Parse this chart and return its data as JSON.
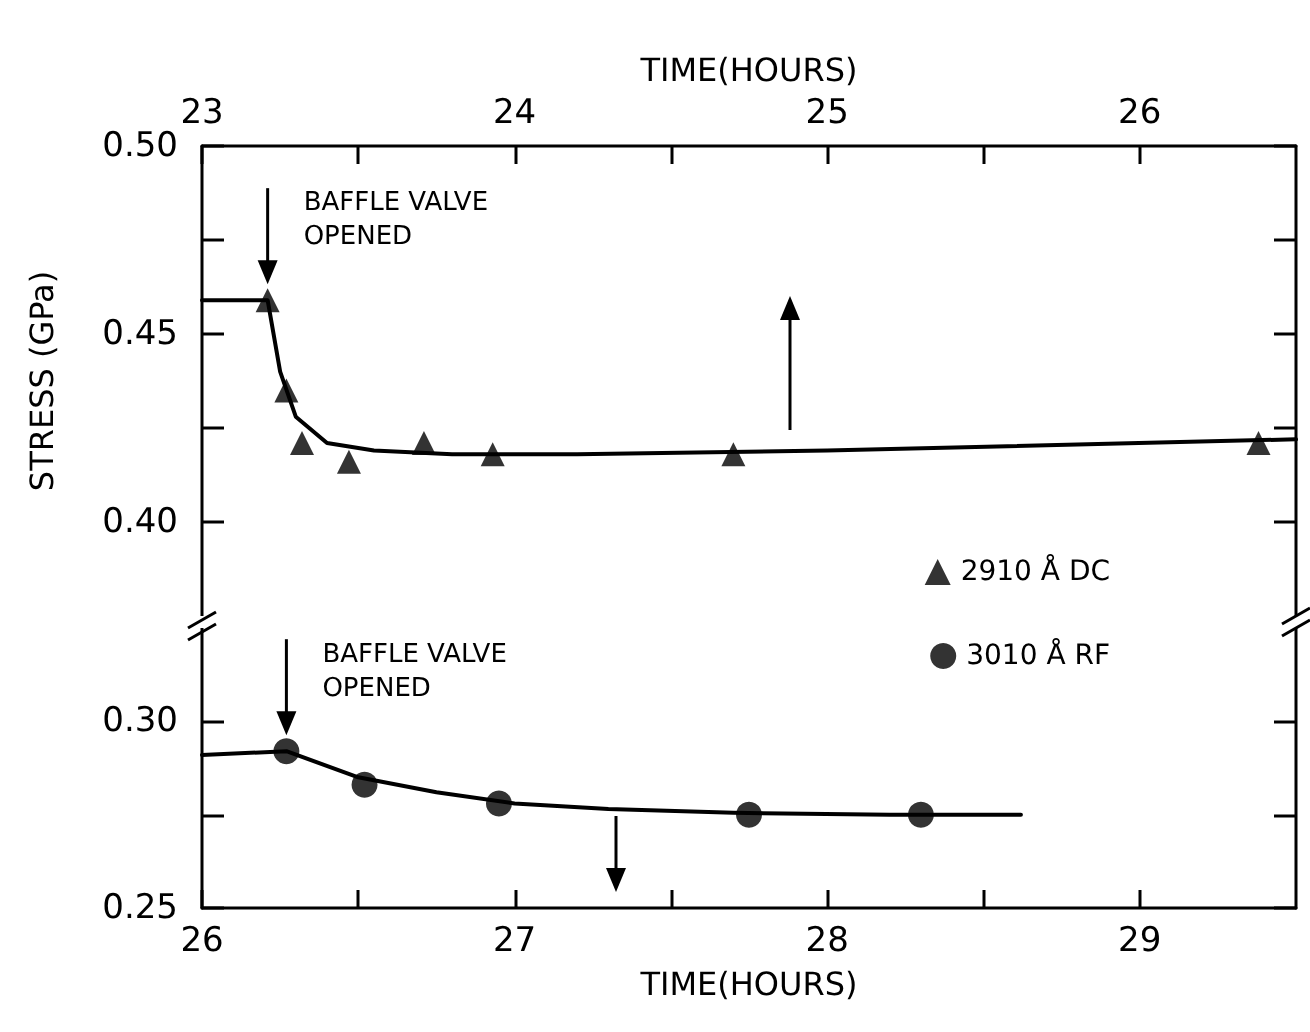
{
  "chart_data": [
    {
      "type": "scatter",
      "xlabel": "TIME(HOURS)",
      "ylabel": "STRESS (GPa)",
      "xlim": [
        23,
        26.5
      ],
      "xticks": [
        23,
        {
          "value": 23.5,
          "label": null
        },
        24,
        {
          "value": 24.5,
          "label": null
        },
        25,
        {
          "value": 25.5,
          "label": null
        },
        26
      ],
      "ylim": [
        0.375,
        0.5
      ],
      "yticks": [
        {
          "value": 0.4,
          "label": "0.40"
        },
        {
          "value": 0.425,
          "label": null
        },
        {
          "value": 0.45,
          "label": "0.45"
        },
        {
          "value": 0.475,
          "label": null
        },
        {
          "value": 0.5,
          "label": "0.50"
        }
      ],
      "series": [
        {
          "name": "2910 Å DC",
          "type": "scatter",
          "marker": "triangle",
          "color": "#000000",
          "x": [
            23.21,
            23.27,
            23.32,
            23.47,
            23.71,
            23.93,
            24.7,
            26.38
          ],
          "values": [
            0.459,
            0.435,
            0.421,
            0.416,
            0.421,
            0.418,
            0.418,
            0.421
          ]
        },
        {
          "type": "line",
          "marker": "none",
          "color": "#000000",
          "x": [
            23,
            23.21,
            23.25,
            23.3,
            23.4,
            23.55,
            23.8,
            24.2,
            25,
            26.5
          ],
          "values": [
            0.459,
            0.459,
            0.44,
            0.428,
            0.421,
            0.419,
            0.418,
            0.418,
            0.419,
            0.422
          ]
        }
      ],
      "annotations": [
        {
          "text": "BAFFLE VALVE OPENED",
          "x": 23.21,
          "y": 0.459
        }
      ],
      "legend": "bottom right",
      "grid": false
    },
    {
      "type": "scatter",
      "xlabel": "TIME(HOURS)",
      "xlim": [
        26,
        29.5
      ],
      "xticks": [
        26,
        {
          "value": 26.5,
          "label": null
        },
        27,
        {
          "value": 27.5,
          "label": null
        },
        28,
        {
          "value": 28.5,
          "label": null
        },
        29
      ],
      "ylim": [
        0.25,
        0.325
      ],
      "yticks": [
        {
          "value": 0.25,
          "label": "0.25"
        },
        {
          "value": 0.275,
          "label": null
        },
        {
          "value": 0.3,
          "label": "0.30"
        }
      ],
      "series": [
        {
          "name": "3010 Å RF",
          "type": "scatter",
          "marker": "circle",
          "color": "#000000",
          "x": [
            26.27,
            26.52,
            26.95,
            27.75,
            28.3
          ],
          "values": [
            0.292,
            0.283,
            0.278,
            0.275,
            0.275
          ]
        },
        {
          "type": "line",
          "marker": "none",
          "color": "#000000",
          "x": [
            26,
            26.27,
            26.5,
            26.75,
            27,
            27.3,
            27.7,
            28.2,
            28.62
          ],
          "values": [
            0.291,
            0.292,
            0.285,
            0.281,
            0.278,
            0.2765,
            0.2755,
            0.275,
            0.275
          ]
        }
      ],
      "annotations": [
        {
          "text": "BAFFLE VALVE OPENED",
          "x": 26.27,
          "y": 0.292
        }
      ],
      "legend": "top right",
      "grid": false
    }
  ]
}
